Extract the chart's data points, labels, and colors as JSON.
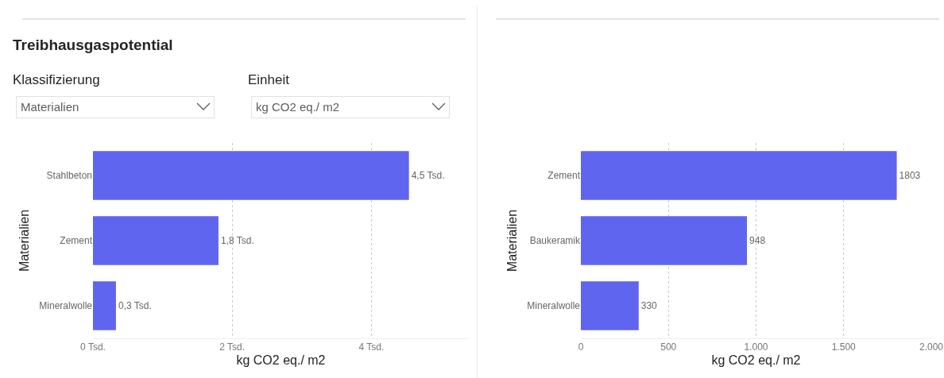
{
  "chart_data": [
    {
      "type": "bar",
      "title": "Treibhausgaspotential",
      "annotations": [
        "Klassifizierung",
        "Materialien",
        "Einheit",
        "kg CO2 eq./ m2"
      ],
      "orientation": "horizontal",
      "categories": [
        "Stahlbeton",
        "Zement",
        "Mineralwolle"
      ],
      "values": [
        4.54,
        1.803,
        0.33
      ],
      "value_labels": [
        "4,5 Tsd.",
        "1,8 Tsd.",
        "0,3 Tsd."
      ],
      "color": "#6065ef",
      "xlim": [
        0,
        5.4
      ],
      "xticks": [
        {
          "value": 0,
          "label": "0 Tsd."
        },
        {
          "value": 2,
          "label": "2 Tsd."
        },
        {
          "value": 4,
          "label": "4 Tsd."
        }
      ],
      "xlabel": "kg CO2 eq./ m2",
      "ylabel": "Materialien",
      "grid": "x",
      "legend": false
    },
    {
      "type": "bar",
      "orientation": "horizontal",
      "categories": [
        "Zement",
        "Baukeramik",
        "Mineralwolle"
      ],
      "values": [
        1803,
        948,
        330
      ],
      "data_labels": true,
      "color": "#6065ef",
      "xlim": [
        0,
        2000
      ],
      "xticks": [
        0,
        500,
        {
          "value": 1000,
          "label": "1.000"
        },
        {
          "value": 1500,
          "label": "1.500"
        },
        {
          "value": 2000,
          "label": "2.000"
        }
      ],
      "xlabel": "kg CO2 eq./ m2",
      "ylabel": "Materialien",
      "grid": "x",
      "legend": false
    }
  ]
}
